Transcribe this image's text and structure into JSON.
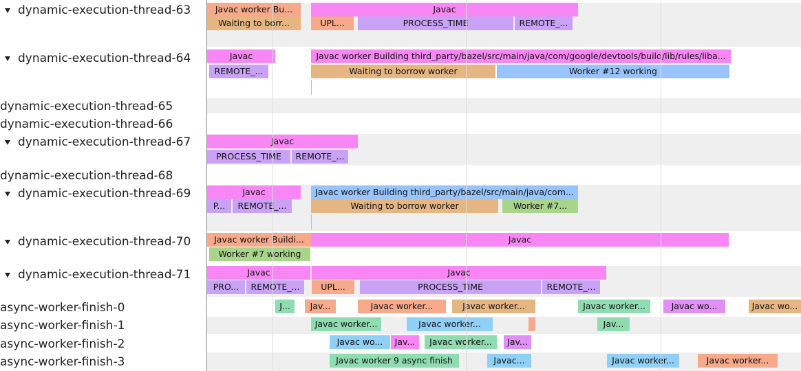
{
  "threads": [
    {
      "label": "dynamic-execution-thread-63",
      "slices": [
        "Javac worker Bu...",
        "Javac",
        "Waiting to borr...",
        "UPL...",
        "PROCESS_TIME",
        "REMOTE_..."
      ]
    },
    {
      "label": "dynamic-execution-thread-64",
      "slices": [
        "Javac",
        "Javac worker Building third_party/bazel/src/main/java/com/google/devtools/build/lib/rules/liba...",
        "REMOTE_...",
        "Waiting to borrow worker",
        "Worker #12 working"
      ]
    },
    {
      "label": "dynamic-execution-thread-65",
      "slices": []
    },
    {
      "label": "dynamic-execution-thread-66",
      "slices": []
    },
    {
      "label": "dynamic-execution-thread-67",
      "slices": [
        "Javac",
        "PROCESS_TIME",
        "REMOTE_..."
      ]
    },
    {
      "label": "dynamic-execution-thread-68",
      "slices": []
    },
    {
      "label": "dynamic-execution-thread-69",
      "slices": [
        "Javac",
        "Javac worker Building third_party/bazel/src/main/java/com...",
        "P...",
        "REMOTE_...",
        "Waiting to borrow worker",
        "Worker #7..."
      ]
    },
    {
      "label": "dynamic-execution-thread-70",
      "slices": [
        "Javac worker Buildi...",
        "Javac",
        "Worker #7 working"
      ]
    },
    {
      "label": "dynamic-execution-thread-71",
      "slices": [
        "Javac",
        "Javac",
        "PRO...",
        "REMOTE_...",
        "UPL...",
        "PROCESS_TIME",
        "REMOTE_..."
      ]
    },
    {
      "label": "async-worker-finish-0",
      "slices": [
        "J...",
        "Jav...",
        "Javac worker...",
        "Javac worker...",
        "Javac worker...",
        "Javac wo...",
        "Javac wo..."
      ]
    },
    {
      "label": "async-worker-finish-1",
      "slices": [
        "Javac worker...",
        "Javac worker...",
        "Jav..."
      ]
    },
    {
      "label": "async-worker-finish-2",
      "slices": [
        "Javac wo...",
        "Jav...",
        "Javac worker...",
        "Jav..."
      ]
    },
    {
      "label": "async-worker-finish-3",
      "slices": [
        "Javac worker 9 async finish",
        "Javac...",
        "Javac worker...",
        "Javac worker..."
      ]
    }
  ]
}
